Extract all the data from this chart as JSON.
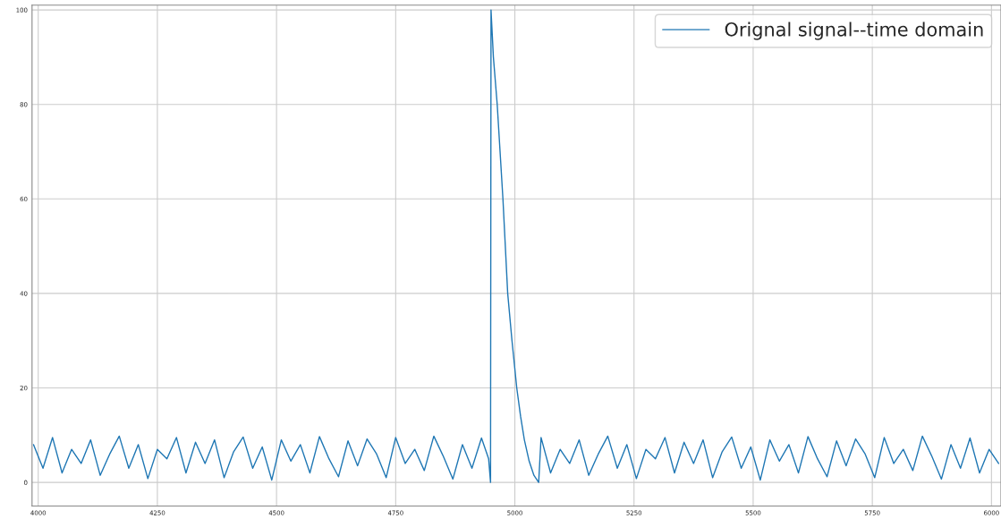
{
  "chart_data": {
    "type": "line",
    "x": [
      3990,
      4010,
      4030,
      4050,
      4070,
      4090,
      4110,
      4130,
      4150,
      4170,
      4190,
      4210,
      4230,
      4250,
      4270,
      4290,
      4310,
      4330,
      4350,
      4370,
      4390,
      4410,
      4430,
      4450,
      4470,
      4490,
      4510,
      4530,
      4550,
      4570,
      4590,
      4610,
      4630,
      4650,
      4670,
      4690,
      4710,
      4730,
      4750,
      4770,
      4790,
      4810,
      4830,
      4850,
      4870,
      4890,
      4910,
      4930,
      4945,
      4949,
      4950,
      4955,
      4963,
      4969,
      4975,
      4980,
      4985,
      4994,
      5004,
      5012,
      5020,
      5030,
      5040,
      5050,
      5055,
      5075,
      5095,
      5115,
      5135,
      5155,
      5175,
      5195,
      5215,
      5235,
      5255,
      5275,
      5295,
      5315,
      5335,
      5355,
      5375,
      5395,
      5415,
      5435,
      5455,
      5475,
      5495,
      5515,
      5535,
      5555,
      5575,
      5595,
      5615,
      5635,
      5655,
      5675,
      5695,
      5715,
      5735,
      5755,
      5775,
      5795,
      5815,
      5835,
      5855,
      5875,
      5895,
      5915,
      5935,
      5955,
      5975,
      5995,
      6015
    ],
    "series": [
      {
        "name": "Orignal signal--time domain",
        "color": "#1f77b4",
        "values": [
          8,
          3,
          9.5,
          2,
          7,
          4,
          9,
          1.5,
          6,
          9.8,
          3,
          8,
          0.8,
          7,
          5,
          9.5,
          2,
          8.5,
          4,
          9,
          1,
          6.5,
          9.6,
          3,
          7.5,
          0.5,
          9,
          4.5,
          8,
          2,
          9.7,
          5,
          1.2,
          8.8,
          3.5,
          9.2,
          6,
          1,
          9.5,
          4,
          7,
          2.5,
          9.8,
          5.5,
          0.7,
          8,
          3,
          9.4,
          5,
          0,
          100,
          90,
          80,
          70,
          60,
          50,
          40,
          30,
          20,
          14,
          9,
          4.5,
          1.5,
          0,
          9.5,
          2,
          7,
          4,
          9,
          1.5,
          6,
          9.8,
          3,
          8,
          0.8,
          7,
          5,
          9.5,
          2,
          8.5,
          4,
          9,
          1,
          6.5,
          9.6,
          3,
          7.5,
          0.5,
          9,
          4.5,
          8,
          2,
          9.7,
          5,
          1.2,
          8.8,
          3.5,
          9.2,
          6,
          1,
          9.5,
          4,
          7,
          2.5,
          9.8,
          5.5,
          0.7,
          8,
          3,
          9.4,
          2,
          7,
          4
        ]
      }
    ],
    "xlim": [
      3987,
      6020
    ],
    "ylim": [
      -5,
      101
    ],
    "xticks": [
      4000,
      4250,
      4500,
      4750,
      5000,
      5250,
      5500,
      5750,
      6000
    ],
    "yticks": [
      0,
      20,
      40,
      60,
      80,
      100
    ],
    "grid": true,
    "legend": "top right"
  }
}
